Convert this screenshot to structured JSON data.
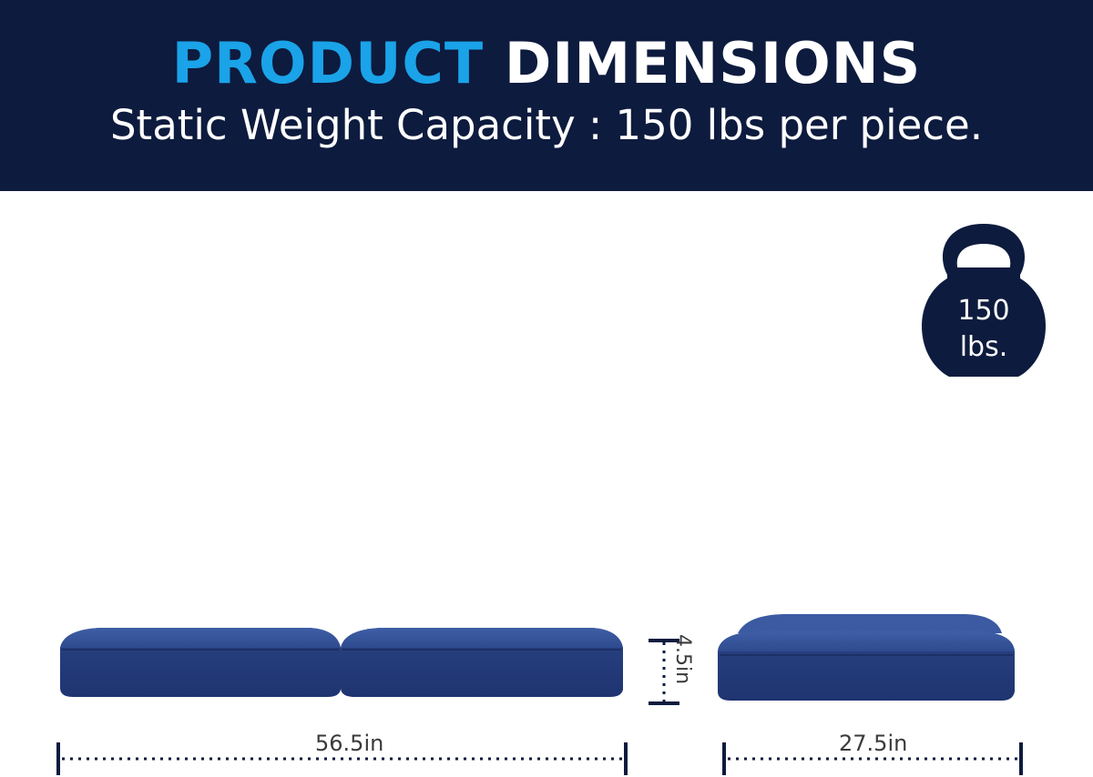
{
  "banner": {
    "title_accent": "PRODUCT",
    "title_main": "DIMENSIONS",
    "subtitle": "Static Weight Capacity : 150 lbs per piece."
  },
  "weight_badge": {
    "value": "150",
    "unit": "lbs."
  },
  "dimensions": {
    "length": "56.5in",
    "depth": "27.5in",
    "height": "4.5in"
  },
  "colors": {
    "banner_bg": "#0d1b3e",
    "accent": "#1aa3e8",
    "cushion": "#2f4b8f",
    "dimension_line": "#0d1b3e"
  }
}
